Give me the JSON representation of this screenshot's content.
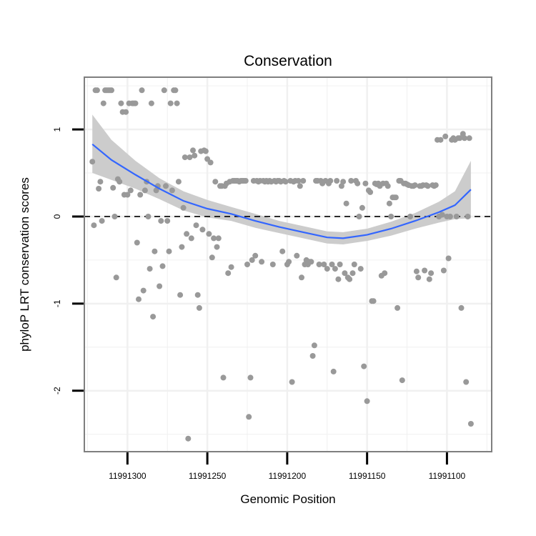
{
  "chart_data": {
    "type": "scatter",
    "title": "Conservation",
    "xlabel": "Genomic Position",
    "ylabel": "phyloP LRT conservation scores",
    "x_axis_reversed": true,
    "xlim": [
      11991327,
      11991072
    ],
    "ylim": [
      -2.7,
      1.6
    ],
    "x_ticks": [
      11991300,
      11991250,
      11991200,
      11991150,
      11991100
    ],
    "x_tick_labels": [
      "11991300",
      "11991250",
      "11991200",
      "11991150",
      "11991100"
    ],
    "y_ticks": [
      -2,
      -1,
      0,
      1
    ],
    "y_tick_labels": [
      "-2",
      "-1",
      "0",
      "1"
    ],
    "grid": true,
    "reference_line": {
      "y": 0,
      "style": "dashed",
      "color": "#000000"
    },
    "colors": {
      "points": "#999999",
      "smooth": "#3366ff",
      "ribbon": "#cccccc",
      "panel_border": "#7f7f7f",
      "grid": "#f0f0f0"
    },
    "points": [
      [
        11991322,
        0.63
      ],
      [
        11991321,
        -0.1
      ],
      [
        11991320,
        1.45
      ],
      [
        11991319,
        1.45
      ],
      [
        11991318,
        0.32
      ],
      [
        11991317,
        0.4
      ],
      [
        11991316,
        -0.05
      ],
      [
        11991315,
        1.3
      ],
      [
        11991314,
        1.45
      ],
      [
        11991313,
        1.45
      ],
      [
        11991312,
        1.45
      ],
      [
        11991311,
        1.45
      ],
      [
        11991310,
        1.45
      ],
      [
        11991309,
        0.33
      ],
      [
        11991308,
        0.0
      ],
      [
        11991307,
        -0.7
      ],
      [
        11991306,
        0.43
      ],
      [
        11991305,
        0.4
      ],
      [
        11991304,
        1.3
      ],
      [
        11991303,
        1.2
      ],
      [
        11991302,
        0.25
      ],
      [
        11991301,
        1.2
      ],
      [
        11991300,
        0.25
      ],
      [
        11991299,
        1.3
      ],
      [
        11991298,
        0.3
      ],
      [
        11991297,
        1.3
      ],
      [
        11991296,
        1.3
      ],
      [
        11991295,
        1.3
      ],
      [
        11991294,
        -0.3
      ],
      [
        11991293,
        -0.95
      ],
      [
        11991292,
        0.25
      ],
      [
        11991291,
        1.45
      ],
      [
        11991290,
        -0.85
      ],
      [
        11991289,
        0.3
      ],
      [
        11991288,
        0.4
      ],
      [
        11991287,
        0.0
      ],
      [
        11991286,
        -0.6
      ],
      [
        11991285,
        1.3
      ],
      [
        11991284,
        -1.15
      ],
      [
        11991283,
        -0.4
      ],
      [
        11991282,
        0.3
      ],
      [
        11991281,
        0.35
      ],
      [
        11991280,
        -0.8
      ],
      [
        11991279,
        -0.05
      ],
      [
        11991278,
        -0.57
      ],
      [
        11991277,
        1.45
      ],
      [
        11991276,
        0.35
      ],
      [
        11991275,
        -0.05
      ],
      [
        11991274,
        -0.4
      ],
      [
        11991273,
        1.3
      ],
      [
        11991272,
        0.3
      ],
      [
        11991271,
        1.45
      ],
      [
        11991270,
        1.45
      ],
      [
        11991269,
        1.3
      ],
      [
        11991268,
        0.4
      ],
      [
        11991267,
        -0.9
      ],
      [
        11991266,
        -0.35
      ],
      [
        11991265,
        0.1
      ],
      [
        11991264,
        0.68
      ],
      [
        11991263,
        -0.2
      ],
      [
        11991262,
        -2.55
      ],
      [
        11991261,
        0.68
      ],
      [
        11991260,
        -0.25
      ],
      [
        11991259,
        0.76
      ],
      [
        11991258,
        0.7
      ],
      [
        11991257,
        -0.1
      ],
      [
        11991256,
        -0.9
      ],
      [
        11991255,
        -1.05
      ],
      [
        11991254,
        0.75
      ],
      [
        11991253,
        -0.15
      ],
      [
        11991252,
        0.76
      ],
      [
        11991251,
        0.75
      ],
      [
        11991250,
        0.66
      ],
      [
        11991249,
        -0.2
      ],
      [
        11991248,
        0.62
      ],
      [
        11991247,
        -0.47
      ],
      [
        11991246,
        -0.25
      ],
      [
        11991245,
        0.4
      ],
      [
        11991244,
        -0.35
      ],
      [
        11991243,
        -0.25
      ],
      [
        11991242,
        0.35
      ],
      [
        11991241,
        0.35
      ],
      [
        11991240,
        -1.85
      ],
      [
        11991239,
        0.35
      ],
      [
        11991238,
        0.38
      ],
      [
        11991237,
        -0.65
      ],
      [
        11991236,
        0.4
      ],
      [
        11991235,
        -0.58
      ],
      [
        11991234,
        0.41
      ],
      [
        11991233,
        0.41
      ],
      [
        11991232,
        0.41
      ],
      [
        11991231,
        0.41
      ],
      [
        11991230,
        0.4
      ],
      [
        11991229,
        0.41
      ],
      [
        11991228,
        0.41
      ],
      [
        11991227,
        0.41
      ],
      [
        11991226,
        0.41
      ],
      [
        11991225,
        -0.55
      ],
      [
        11991224,
        -2.3
      ],
      [
        11991223,
        -1.85
      ],
      [
        11991222,
        -0.5
      ],
      [
        11991221,
        0.41
      ],
      [
        11991220,
        -0.45
      ],
      [
        11991219,
        0.41
      ],
      [
        11991218,
        0.4
      ],
      [
        11991217,
        0.41
      ],
      [
        11991216,
        -0.52
      ],
      [
        11991215,
        0.41
      ],
      [
        11991214,
        0.4
      ],
      [
        11991213,
        0.41
      ],
      [
        11991212,
        0.4
      ],
      [
        11991211,
        0.41
      ],
      [
        11991210,
        0.4
      ],
      [
        11991209,
        -0.55
      ],
      [
        11991208,
        0.41
      ],
      [
        11991207,
        0.4
      ],
      [
        11991206,
        0.41
      ],
      [
        11991205,
        0.41
      ],
      [
        11991204,
        0.4
      ],
      [
        11991203,
        -0.4
      ],
      [
        11991202,
        0.41
      ],
      [
        11991201,
        0.4
      ],
      [
        11991200,
        -0.55
      ],
      [
        11991199,
        -0.52
      ],
      [
        11991198,
        0.41
      ],
      [
        11991197,
        -1.9
      ],
      [
        11991196,
        0.4
      ],
      [
        11991195,
        0.41
      ],
      [
        11991194,
        -0.45
      ],
      [
        11991193,
        0.41
      ],
      [
        11991192,
        0.35
      ],
      [
        11991191,
        -0.7
      ],
      [
        11991190,
        0.41
      ],
      [
        11991189,
        -0.55
      ],
      [
        11991188,
        -0.5
      ],
      [
        11991187,
        -0.55
      ],
      [
        11991186,
        -0.52
      ],
      [
        11991185,
        -0.52
      ],
      [
        11991184,
        -1.6
      ],
      [
        11991183,
        -1.48
      ],
      [
        11991182,
        0.41
      ],
      [
        11991181,
        0.41
      ],
      [
        11991180,
        -0.55
      ],
      [
        11991179,
        0.41
      ],
      [
        11991178,
        0.38
      ],
      [
        11991177,
        -0.55
      ],
      [
        11991176,
        0.41
      ],
      [
        11991175,
        -0.6
      ],
      [
        11991174,
        0.38
      ],
      [
        11991173,
        0.41
      ],
      [
        11991172,
        -0.55
      ],
      [
        11991171,
        -1.78
      ],
      [
        11991170,
        -0.6
      ],
      [
        11991169,
        0.41
      ],
      [
        11991168,
        -0.72
      ],
      [
        11991167,
        -0.55
      ],
      [
        11991166,
        0.35
      ],
      [
        11991165,
        0.4
      ],
      [
        11991164,
        -0.65
      ],
      [
        11991163,
        0.15
      ],
      [
        11991162,
        -0.7
      ],
      [
        11991161,
        -0.72
      ],
      [
        11991160,
        0.41
      ],
      [
        11991159,
        -0.65
      ],
      [
        11991158,
        -0.55
      ],
      [
        11991157,
        0.41
      ],
      [
        11991156,
        0.38
      ],
      [
        11991155,
        0.0
      ],
      [
        11991154,
        -0.6
      ],
      [
        11991153,
        0.1
      ],
      [
        11991152,
        -1.72
      ],
      [
        11991151,
        0.38
      ],
      [
        11991150,
        -2.12
      ],
      [
        11991149,
        0.3
      ],
      [
        11991148,
        0.28
      ],
      [
        11991147,
        -0.97
      ],
      [
        11991146,
        -0.97
      ],
      [
        11991145,
        0.38
      ],
      [
        11991144,
        0.37
      ],
      [
        11991143,
        0.38
      ],
      [
        11991142,
        0.35
      ],
      [
        11991141,
        -0.68
      ],
      [
        11991140,
        0.38
      ],
      [
        11991139,
        -0.65
      ],
      [
        11991138,
        0.38
      ],
      [
        11991137,
        0.35
      ],
      [
        11991136,
        0.15
      ],
      [
        11991135,
        0.0
      ],
      [
        11991134,
        0.22
      ],
      [
        11991133,
        0.22
      ],
      [
        11991132,
        0.22
      ],
      [
        11991131,
        -1.05
      ],
      [
        11991130,
        0.41
      ],
      [
        11991129,
        0.41
      ],
      [
        11991128,
        -1.88
      ],
      [
        11991127,
        0.38
      ],
      [
        11991126,
        0.38
      ],
      [
        11991125,
        0.37
      ],
      [
        11991124,
        0.36
      ],
      [
        11991123,
        0.0
      ],
      [
        11991122,
        0.35
      ],
      [
        11991121,
        0.35
      ],
      [
        11991120,
        0.36
      ],
      [
        11991119,
        -0.63
      ],
      [
        11991118,
        -0.7
      ],
      [
        11991117,
        0.35
      ],
      [
        11991116,
        0.35
      ],
      [
        11991115,
        0.36
      ],
      [
        11991114,
        -0.62
      ],
      [
        11991113,
        0.36
      ],
      [
        11991112,
        0.35
      ],
      [
        11991111,
        -0.72
      ],
      [
        11991110,
        -0.65
      ],
      [
        11991109,
        0.36
      ],
      [
        11991108,
        0.35
      ],
      [
        11991107,
        0.36
      ],
      [
        11991106,
        0.88
      ],
      [
        11991105,
        0.0
      ],
      [
        11991104,
        0.88
      ],
      [
        11991103,
        0.02
      ],
      [
        11991102,
        -0.62
      ],
      [
        11991101,
        0.92
      ],
      [
        11991100,
        0.0
      ],
      [
        11991099,
        -0.48
      ],
      [
        11991098,
        0.0
      ],
      [
        11991097,
        0.88
      ],
      [
        11991096,
        0.9
      ],
      [
        11991095,
        0.88
      ],
      [
        11991094,
        0.0
      ],
      [
        11991093,
        0.9
      ],
      [
        11991092,
        0.9
      ],
      [
        11991091,
        -1.05
      ],
      [
        11991090,
        0.95
      ],
      [
        11991089,
        0.9
      ],
      [
        11991088,
        -1.9
      ],
      [
        11991087,
        0.0
      ],
      [
        11991086,
        0.9
      ],
      [
        11991085,
        -2.38
      ]
    ],
    "smooth_fit": [
      {
        "x": 11991322,
        "y": 0.83,
        "lo": 0.5,
        "hi": 1.17
      },
      {
        "x": 11991310,
        "y": 0.65,
        "lo": 0.42,
        "hi": 0.88
      },
      {
        "x": 11991295,
        "y": 0.48,
        "lo": 0.32,
        "hi": 0.64
      },
      {
        "x": 11991280,
        "y": 0.32,
        "lo": 0.2,
        "hi": 0.44
      },
      {
        "x": 11991265,
        "y": 0.18,
        "lo": 0.07,
        "hi": 0.29
      },
      {
        "x": 11991250,
        "y": 0.09,
        "lo": -0.01,
        "hi": 0.19
      },
      {
        "x": 11991235,
        "y": 0.03,
        "lo": -0.05,
        "hi": 0.11
      },
      {
        "x": 11991220,
        "y": -0.05,
        "lo": -0.13,
        "hi": 0.03
      },
      {
        "x": 11991205,
        "y": -0.12,
        "lo": -0.19,
        "hi": -0.05
      },
      {
        "x": 11991190,
        "y": -0.18,
        "lo": -0.25,
        "hi": -0.11
      },
      {
        "x": 11991175,
        "y": -0.24,
        "lo": -0.31,
        "hi": -0.17
      },
      {
        "x": 11991165,
        "y": -0.25,
        "lo": -0.32,
        "hi": -0.18
      },
      {
        "x": 11991150,
        "y": -0.21,
        "lo": -0.28,
        "hi": -0.14
      },
      {
        "x": 11991135,
        "y": -0.14,
        "lo": -0.22,
        "hi": -0.06
      },
      {
        "x": 11991120,
        "y": -0.05,
        "lo": -0.14,
        "hi": 0.04
      },
      {
        "x": 11991105,
        "y": 0.05,
        "lo": -0.07,
        "hi": 0.17
      },
      {
        "x": 11991095,
        "y": 0.13,
        "lo": -0.03,
        "hi": 0.29
      },
      {
        "x": 11991085,
        "y": 0.31,
        "lo": -0.02,
        "hi": 0.64
      }
    ]
  }
}
